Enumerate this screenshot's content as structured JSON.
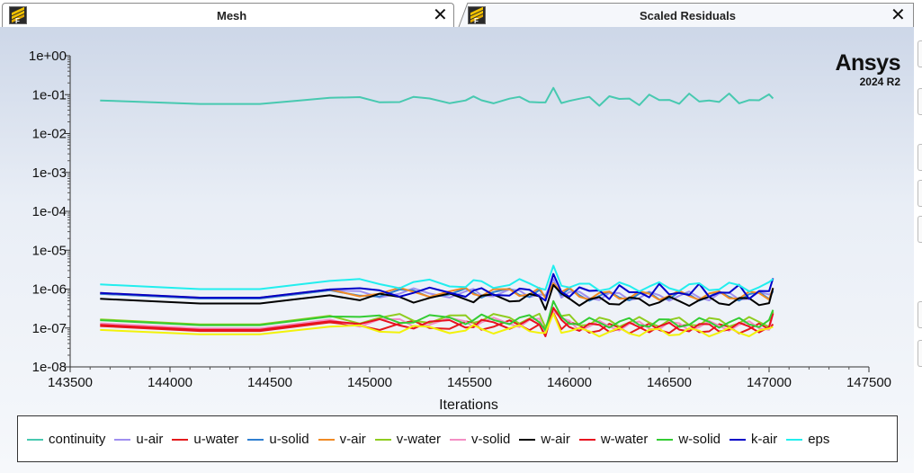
{
  "tabs": [
    {
      "title": "Mesh",
      "close": "✕"
    },
    {
      "title": "Scaled Residuals",
      "close": "✕"
    }
  ],
  "logo": {
    "name": "Ansys",
    "version": "2024 R2"
  },
  "chart_data": {
    "type": "line",
    "title": "",
    "xlabel": "Iterations",
    "ylabel": "",
    "xlim": [
      143500,
      147500
    ],
    "ylim_exponent": [
      -8,
      0
    ],
    "yscale": "log",
    "xticks": [
      "143500",
      "144000",
      "144500",
      "145000",
      "145500",
      "146000",
      "146500",
      "147000",
      "147500"
    ],
    "yticks": [
      "1e+00",
      "1e-01",
      "1e-02",
      "1e-03",
      "1e-04",
      "1e-05",
      "1e-06",
      "1e-07",
      "1e-08"
    ],
    "legend_position": "bottom",
    "x": [
      143650,
      144150,
      144450,
      144650,
      144800,
      144950,
      145050,
      145150,
      145220,
      145300,
      145400,
      145480,
      145520,
      145560,
      145620,
      145700,
      145750,
      145800,
      145850,
      145880,
      145920,
      145960,
      146000,
      146050,
      146100,
      146150,
      146200,
      146250,
      146300,
      146350,
      146400,
      146450,
      146500,
      146550,
      146600,
      146650,
      146700,
      146750,
      146800,
      146850,
      146900,
      146950,
      147000,
      147020
    ],
    "series": [
      {
        "name": "continuity",
        "color": "#48c9b0",
        "base": -1.15,
        "amp": 0.12
      },
      {
        "name": "u-air",
        "color": "#9f8ff0",
        "base": -6.12,
        "amp": 0.16
      },
      {
        "name": "u-water",
        "color": "#e41a1c",
        "base": -6.95,
        "amp": 0.17
      },
      {
        "name": "u-solid",
        "color": "#2f7fd1",
        "base": -6.12,
        "amp": 0.16
      },
      {
        "name": "v-air",
        "color": "#f08a24",
        "base": -6.1,
        "amp": 0.16
      },
      {
        "name": "v-water",
        "color": "#8fcc1f",
        "base": -6.78,
        "amp": 0.17
      },
      {
        "name": "v-solid",
        "color": "#f48fc4",
        "base": -6.88,
        "amp": 0.17
      },
      {
        "name": "w-air",
        "color": "#000000",
        "base": -6.25,
        "amp": 0.16
      },
      {
        "name": "w-water",
        "color": "#e8101f",
        "base": -6.92,
        "amp": 0.17
      },
      {
        "name": "w-solid",
        "color": "#33cc33",
        "base": -6.8,
        "amp": 0.17
      },
      {
        "name": "k-air",
        "color": "#0000c8",
        "base": -6.1,
        "amp": 0.16
      },
      {
        "name": "eps",
        "color": "#22eeee",
        "base": -5.88,
        "amp": 0.16
      }
    ],
    "extra_series": [
      {
        "name": "",
        "color": "#f2f20a",
        "base": -7.05,
        "amp": 0.15
      }
    ]
  }
}
